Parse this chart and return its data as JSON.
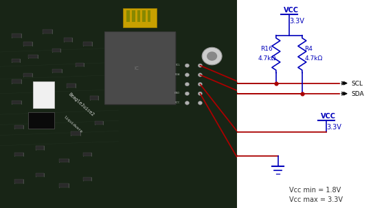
{
  "bg_color": "#ffffff",
  "circuit": {
    "vcc1_label": "VCC",
    "vcc1_value": "3.3V",
    "vcc2_label": "VCC",
    "vcc2_value": "3.3V",
    "r16_label": "R16",
    "r16_value": "4.7kΩ",
    "r4_label": "R4",
    "r4_value": "4.7kΩ",
    "scl_label": "SCL",
    "sda_label": "SDA",
    "vcc_min": "Vcc min = 1.8V",
    "vcc_max": "Vcc max = 3.3V",
    "wire_color": "#aa0000",
    "schematic_color": "#0000bb",
    "text_dark": "#333333"
  }
}
